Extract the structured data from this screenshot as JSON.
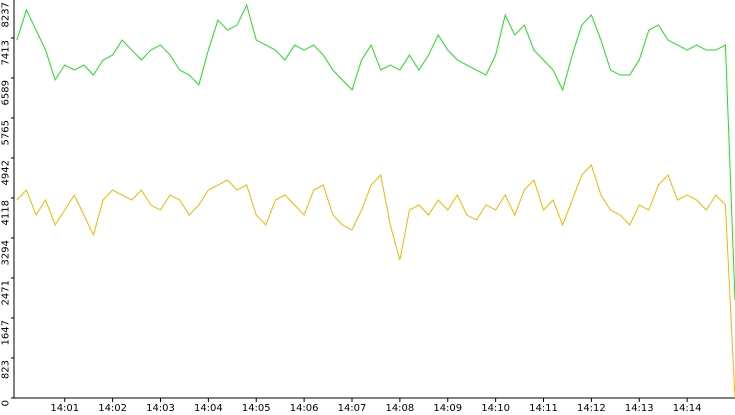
{
  "chart_data": {
    "type": "line",
    "x": [
      840.0,
      840.2,
      840.4,
      840.6,
      840.8,
      841.0,
      841.2,
      841.4,
      841.6,
      841.8,
      842.0,
      842.2,
      842.4,
      842.6,
      842.8,
      843.0,
      843.2,
      843.4,
      843.6,
      843.8,
      844.0,
      844.2,
      844.4,
      844.6,
      844.8,
      845.0,
      845.2,
      845.4,
      845.6,
      845.8,
      846.0,
      846.2,
      846.4,
      846.6,
      846.8,
      847.0,
      847.2,
      847.4,
      847.6,
      847.8,
      848.0,
      848.2,
      848.4,
      848.6,
      848.8,
      849.0,
      849.2,
      849.4,
      849.6,
      849.8,
      850.0,
      850.2,
      850.4,
      850.6,
      850.8,
      851.0,
      851.2,
      851.4,
      851.6,
      851.8,
      852.0,
      852.2,
      852.4,
      852.6,
      852.8,
      853.0,
      853.2,
      853.4,
      853.6,
      853.8,
      854.0,
      854.2,
      854.4,
      854.6,
      854.8,
      855.0
    ],
    "series": [
      {
        "color": "#22dd22",
        "values": [
          7371,
          7989,
          7577,
          7165,
          6548,
          6857,
          6754,
          6857,
          6651,
          6960,
          7062,
          7371,
          7165,
          6960,
          7165,
          7268,
          7062,
          6754,
          6651,
          6445,
          7165,
          7783,
          7577,
          7680,
          8092,
          7371,
          7268,
          7165,
          6960,
          7268,
          7165,
          7268,
          7062,
          6754,
          6548,
          6342,
          6960,
          7268,
          6754,
          6857,
          6754,
          7062,
          6754,
          7062,
          7474,
          7165,
          6960,
          6857,
          6754,
          6651,
          7062,
          7886,
          7474,
          7680,
          7165,
          6960,
          6754,
          6342,
          7062,
          7680,
          7886,
          7371,
          6754,
          6651,
          6651,
          6960,
          7577,
          7680,
          7371,
          7268,
          7165,
          7268,
          7165,
          7165,
          7268,
          2018
        ]
      },
      {
        "color": "#f0b800",
        "values": [
          4077,
          4283,
          3768,
          4077,
          3563,
          3871,
          4180,
          3768,
          3357,
          4077,
          4283,
          4180,
          4077,
          4283,
          3974,
          3871,
          4180,
          4077,
          3768,
          3974,
          4283,
          4386,
          4489,
          4283,
          4386,
          3768,
          3563,
          4077,
          4180,
          3974,
          3768,
          4283,
          4386,
          3768,
          3563,
          3460,
          3871,
          4386,
          4592,
          3563,
          2842,
          3871,
          3974,
          3768,
          4077,
          3871,
          4180,
          3768,
          3665,
          3974,
          3871,
          4180,
          3768,
          4283,
          4489,
          3871,
          4077,
          3563,
          4077,
          4592,
          4798,
          4180,
          3871,
          3768,
          3563,
          3974,
          3871,
          4386,
          4592,
          4077,
          4180,
          4077,
          3871,
          4180,
          3974,
          0
        ]
      }
    ],
    "xlim": [
      839.94,
      855.0
    ],
    "xticks": [
      {
        "value": 841,
        "label": "14:01"
      },
      {
        "value": 842,
        "label": "14:02"
      },
      {
        "value": 843,
        "label": "14:03"
      },
      {
        "value": 844,
        "label": "14:04"
      },
      {
        "value": 845,
        "label": "14:05"
      },
      {
        "value": 846,
        "label": "14:06"
      },
      {
        "value": 847,
        "label": "14:07"
      },
      {
        "value": 848,
        "label": "14:08"
      },
      {
        "value": 849,
        "label": "14:09"
      },
      {
        "value": 850,
        "label": "14:10"
      },
      {
        "value": 851,
        "label": "14:11"
      },
      {
        "value": 852,
        "label": "14:12"
      },
      {
        "value": 853,
        "label": "14:13"
      },
      {
        "value": 854,
        "label": "14:14"
      }
    ],
    "ylim": [
      0,
      8237
    ],
    "yticks": [
      0,
      823,
      1647,
      2471,
      3294,
      4118,
      4942,
      5765,
      6589,
      7413,
      8237
    ]
  }
}
